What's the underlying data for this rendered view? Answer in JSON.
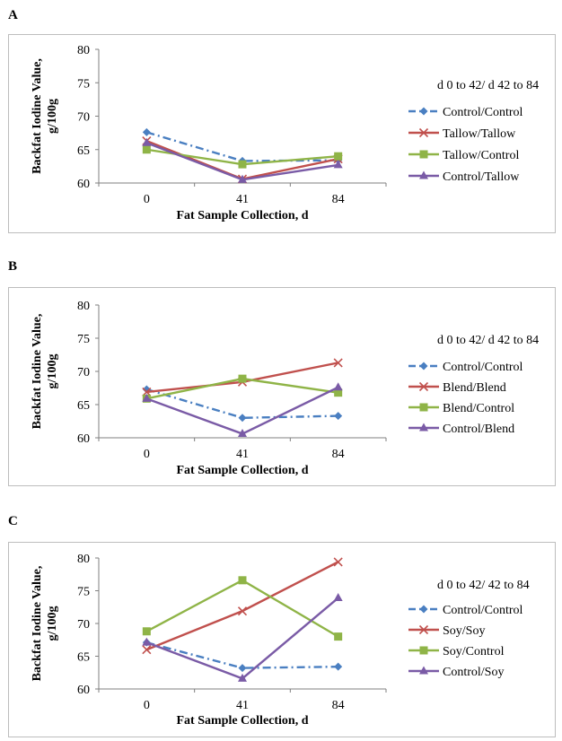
{
  "colors": {
    "blue": "#4a7fc1",
    "red": "#c0504d",
    "green": "#8fb447",
    "purple": "#7a5ba6"
  },
  "chart_data": [
    {
      "type": "line",
      "panel": "A",
      "xlabel": "Fat Sample Collection, d",
      "ylabel": "Backfat Iodine Value, g/100g",
      "categories": [
        "0",
        "41",
        "84"
      ],
      "ylim": [
        60,
        80
      ],
      "yticks": [
        60,
        65,
        70,
        75,
        80
      ],
      "legend_title": "d 0 to 42/ d 42 to 84",
      "series": [
        {
          "name": "Control/Control",
          "values": [
            67.6,
            63.3,
            63.4
          ],
          "color": "#4a7fc1",
          "marker": "diamond",
          "dash": true
        },
        {
          "name": "Tallow/Tallow",
          "values": [
            66.3,
            60.6,
            63.6
          ],
          "color": "#c0504d",
          "marker": "x",
          "dash": false
        },
        {
          "name": "Tallow/Control",
          "values": [
            65.0,
            62.8,
            64.0
          ],
          "color": "#8fb447",
          "marker": "square",
          "dash": false
        },
        {
          "name": "Control/Tallow",
          "values": [
            66.0,
            60.5,
            62.7
          ],
          "color": "#7a5ba6",
          "marker": "triangle",
          "dash": false
        }
      ]
    },
    {
      "type": "line",
      "panel": "B",
      "xlabel": "Fat Sample Collection, d",
      "ylabel": "Backfat Iodine Value, g/100g",
      "categories": [
        "0",
        "41",
        "84"
      ],
      "ylim": [
        60,
        80
      ],
      "yticks": [
        60,
        65,
        70,
        75,
        80
      ],
      "legend_title": "d 0 to 42/ d 42 to 84",
      "series": [
        {
          "name": "Control/Control",
          "values": [
            67.3,
            63.0,
            63.3
          ],
          "color": "#4a7fc1",
          "marker": "diamond",
          "dash": true
        },
        {
          "name": "Blend/Blend",
          "values": [
            66.9,
            68.4,
            71.3
          ],
          "color": "#c0504d",
          "marker": "x",
          "dash": false
        },
        {
          "name": "Blend/Control",
          "values": [
            65.9,
            68.9,
            66.8
          ],
          "color": "#8fb447",
          "marker": "square",
          "dash": false
        },
        {
          "name": "Control/Blend",
          "values": [
            65.9,
            60.6,
            67.6
          ],
          "color": "#7a5ba6",
          "marker": "triangle",
          "dash": false
        }
      ]
    },
    {
      "type": "line",
      "panel": "C",
      "xlabel": "Fat Sample Collection, d",
      "ylabel": "Backfat Iodine Value, g/100g",
      "categories": [
        "0",
        "41",
        "84"
      ],
      "ylim": [
        60,
        80
      ],
      "yticks": [
        60,
        65,
        70,
        75,
        80
      ],
      "legend_title": "d 0 to 42/ 42 to 84",
      "series": [
        {
          "name": "Control/Control",
          "values": [
            67.1,
            63.2,
            63.4
          ],
          "color": "#4a7fc1",
          "marker": "diamond",
          "dash": true
        },
        {
          "name": "Soy/Soy",
          "values": [
            66.0,
            71.9,
            79.4
          ],
          "color": "#c0504d",
          "marker": "x",
          "dash": false
        },
        {
          "name": "Soy/Control",
          "values": [
            68.8,
            76.6,
            68.0
          ],
          "color": "#8fb447",
          "marker": "square",
          "dash": false
        },
        {
          "name": "Control/Soy",
          "values": [
            67.1,
            61.6,
            73.9
          ],
          "color": "#7a5ba6",
          "marker": "triangle",
          "dash": false
        }
      ]
    }
  ]
}
